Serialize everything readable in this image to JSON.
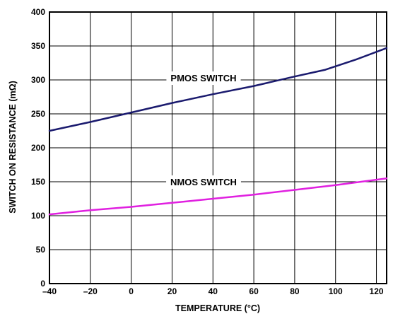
{
  "chart_data": {
    "type": "line",
    "title": "",
    "xlabel": "TEMPERATURE (°C)",
    "ylabel": "SWITCH ON RESISTANCE (mΩ)",
    "xlim": [
      -40,
      125
    ],
    "ylim": [
      0,
      400
    ],
    "x_ticks": [
      "–40",
      "–20",
      "0",
      "20",
      "40",
      "60",
      "80",
      "100",
      "120"
    ],
    "y_ticks": [
      "0",
      "50",
      "100",
      "150",
      "200",
      "250",
      "300",
      "350",
      "400"
    ],
    "grid": true,
    "series": [
      {
        "name": "PMOS SWITCH",
        "color": "#1a1a6e",
        "x": [
          -40,
          -20,
          0,
          20,
          40,
          60,
          80,
          95,
          110,
          125
        ],
        "y": [
          225,
          238,
          252,
          266,
          279,
          291,
          305,
          315,
          330,
          347
        ]
      },
      {
        "name": "NMOS SWITCH",
        "color": "#e020e0",
        "x": [
          -40,
          -20,
          0,
          20,
          40,
          60,
          80,
          100,
          125
        ],
        "y": [
          102,
          108,
          113,
          119,
          125,
          131,
          138,
          145,
          155
        ]
      }
    ]
  }
}
